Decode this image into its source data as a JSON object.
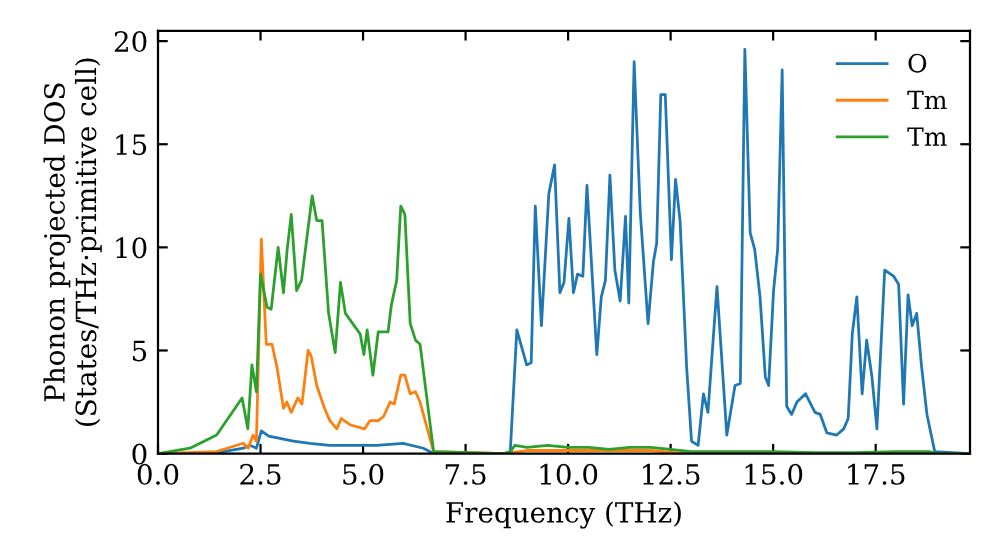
{
  "chart_data": {
    "type": "line",
    "xlabel": "Frequency (THz)",
    "ylabel": "Phonon projected DOS\n(States/THz·primitive cell)",
    "xlim": [
      0,
      19.8
    ],
    "ylim": [
      0,
      20.5
    ],
    "xticks": [
      {
        "value": 0,
        "label": "0.0"
      },
      {
        "value": 2.5,
        "label": "2.5"
      },
      {
        "value": 5,
        "label": "5.0"
      },
      {
        "value": 7.5,
        "label": "7.5"
      },
      {
        "value": 10,
        "label": "10.0"
      },
      {
        "value": 12.5,
        "label": "12.5"
      },
      {
        "value": 15,
        "label": "15.0"
      },
      {
        "value": 17.5,
        "label": "17.5"
      }
    ],
    "yticks": [
      0,
      5,
      10,
      15,
      20
    ],
    "grid": false,
    "legend": "top right",
    "marker": "none",
    "line_style": "solid",
    "series": [
      {
        "name": "O",
        "color": "#1f77b4",
        "x": [
          0,
          1.43,
          2.08,
          2.24,
          2.4,
          2.52,
          2.7,
          3.06,
          3.3,
          3.7,
          4.19,
          4.68,
          5.33,
          5.98,
          6.47,
          6.72,
          8.45,
          8.59,
          8.75,
          8.99,
          9.1,
          9.2,
          9.35,
          9.53,
          9.67,
          9.8,
          9.9,
          10.02,
          10.13,
          10.23,
          10.36,
          10.46,
          10.7,
          10.81,
          10.91,
          11.02,
          11.14,
          11.27,
          11.4,
          11.48,
          11.61,
          11.76,
          11.95,
          12.08,
          12.16,
          12.26,
          12.37,
          12.52,
          12.62,
          12.73,
          12.89,
          13.01,
          13.17,
          13.3,
          13.41,
          13.63,
          13.87,
          14.07,
          14.2,
          14.31,
          14.44,
          14.55,
          14.68,
          14.81,
          14.89,
          15.01,
          15.11,
          15.22,
          15.33,
          15.45,
          15.58,
          15.79,
          16.02,
          16.15,
          16.31,
          16.55,
          16.72,
          16.83,
          16.93,
          17.04,
          17.17,
          17.28,
          17.41,
          17.53,
          17.72,
          17.94,
          18.06,
          18.18,
          18.29,
          18.39,
          18.5,
          18.62,
          18.75,
          18.94,
          19.8
        ],
        "values": [
          0,
          0.03,
          0.26,
          0.4,
          0.26,
          1.1,
          0.85,
          0.7,
          0.6,
          0.5,
          0.4,
          0.4,
          0.4,
          0.5,
          0.26,
          0,
          0,
          0.1,
          6.0,
          4.3,
          4.4,
          12.0,
          6.2,
          12.6,
          14.0,
          7.8,
          8.3,
          11.4,
          7.8,
          8.7,
          8.6,
          13.0,
          4.8,
          7.6,
          8.4,
          13.5,
          8.9,
          7.4,
          11.5,
          7.3,
          19.0,
          11.7,
          6.3,
          9.3,
          10.2,
          17.4,
          17.4,
          9.4,
          13.3,
          11.3,
          4.2,
          0.6,
          0.4,
          2.9,
          2.0,
          8.1,
          0.9,
          3.3,
          3.4,
          19.6,
          10.7,
          9.9,
          7.6,
          3.7,
          3.3,
          7.9,
          9.9,
          18.6,
          2.3,
          1.9,
          2.5,
          2.9,
          2.0,
          1.9,
          1.0,
          0.9,
          1.2,
          1.7,
          5.8,
          7.6,
          2.9,
          5.5,
          3.7,
          1.2,
          8.9,
          8.6,
          8.2,
          2.4,
          7.7,
          6.2,
          6.8,
          4.2,
          1.9,
          0.1,
          0
        ]
      },
      {
        "name": "Tm",
        "color": "#ff7f0e",
        "x": [
          0,
          1.43,
          2.08,
          2.2,
          2.32,
          2.4,
          2.52,
          2.64,
          2.78,
          2.9,
          3.06,
          3.14,
          3.25,
          3.41,
          3.51,
          3.66,
          3.74,
          3.87,
          4.06,
          4.19,
          4.36,
          4.47,
          4.68,
          5.04,
          5.17,
          5.37,
          5.5,
          5.66,
          5.76,
          5.92,
          6.02,
          6.15,
          6.28,
          6.39,
          6.72,
          8.45,
          8.6,
          9.0,
          10.0,
          11.0,
          12.0,
          12.6,
          13.0,
          19.8
        ],
        "values": [
          0,
          0.1,
          0.5,
          0.26,
          0.9,
          0.6,
          10.4,
          5.3,
          5.3,
          4.2,
          2.2,
          2.5,
          2.0,
          2.7,
          2.4,
          5.0,
          4.7,
          3.3,
          2.2,
          1.6,
          1.2,
          1.7,
          1.4,
          1.2,
          1.6,
          1.6,
          1.8,
          2.5,
          2.4,
          3.8,
          3.8,
          2.9,
          3.0,
          2.5,
          0.1,
          0,
          0.05,
          0.15,
          0.15,
          0.15,
          0.15,
          0.05,
          0,
          0
        ]
      },
      {
        "name": "Tm",
        "color": "#2ca02c",
        "x": [
          0,
          0.78,
          1.43,
          2.05,
          2.19,
          2.29,
          2.4,
          2.5,
          2.66,
          2.76,
          2.93,
          3.06,
          3.15,
          3.25,
          3.38,
          3.5,
          3.76,
          3.87,
          4.0,
          4.16,
          4.32,
          4.45,
          4.57,
          4.93,
          5.02,
          5.1,
          5.24,
          5.37,
          5.61,
          5.69,
          5.82,
          5.92,
          6.02,
          6.15,
          6.28,
          6.39,
          6.72,
          8.45,
          8.6,
          8.7,
          9.0,
          9.5,
          10.0,
          10.5,
          11.0,
          11.5,
          12.0,
          12.5,
          13.0,
          14.0,
          15.0,
          16.0,
          17.0,
          18.0,
          18.8,
          19.0,
          19.8
        ],
        "values": [
          0,
          0.26,
          0.9,
          2.7,
          1.2,
          4.3,
          3.0,
          8.7,
          7.1,
          7.0,
          10.0,
          7.8,
          9.9,
          11.6,
          7.9,
          8.4,
          12.5,
          11.3,
          11.3,
          6.8,
          4.9,
          8.3,
          6.8,
          5.8,
          4.8,
          6.0,
          3.8,
          5.9,
          5.9,
          7.2,
          8.4,
          12.0,
          11.6,
          6.3,
          5.5,
          5.3,
          0.1,
          0,
          0.1,
          0.4,
          0.3,
          0.4,
          0.3,
          0.3,
          0.2,
          0.3,
          0.3,
          0.2,
          0.1,
          0.1,
          0.1,
          0.05,
          0.05,
          0.1,
          0.1,
          0,
          0
        ]
      }
    ]
  }
}
